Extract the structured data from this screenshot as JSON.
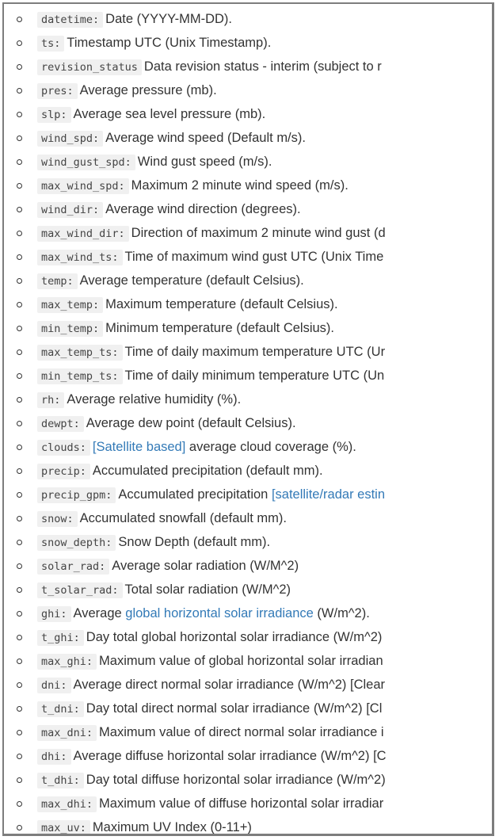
{
  "fields": [
    {
      "name": "datetime:",
      "parts": [
        {
          "text": "Date (YYYY-MM-DD).",
          "link": false
        }
      ]
    },
    {
      "name": "ts:",
      "parts": [
        {
          "text": "Timestamp UTC (Unix Timestamp).",
          "link": false
        }
      ]
    },
    {
      "name": "revision_status",
      "parts": [
        {
          "text": "Data revision status - interim (subject to r",
          "link": false
        }
      ]
    },
    {
      "name": "pres:",
      "parts": [
        {
          "text": "Average pressure (mb).",
          "link": false
        }
      ]
    },
    {
      "name": "slp:",
      "parts": [
        {
          "text": "Average sea level pressure (mb).",
          "link": false
        }
      ]
    },
    {
      "name": "wind_spd:",
      "parts": [
        {
          "text": "Average wind speed (Default m/s).",
          "link": false
        }
      ]
    },
    {
      "name": "wind_gust_spd:",
      "parts": [
        {
          "text": "Wind gust speed (m/s).",
          "link": false
        }
      ]
    },
    {
      "name": "max_wind_spd:",
      "parts": [
        {
          "text": "Maximum 2 minute wind speed (m/s).",
          "link": false
        }
      ]
    },
    {
      "name": "wind_dir:",
      "parts": [
        {
          "text": "Average wind direction (degrees).",
          "link": false
        }
      ]
    },
    {
      "name": "max_wind_dir:",
      "parts": [
        {
          "text": "Direction of maximum 2 minute wind gust (d",
          "link": false
        }
      ]
    },
    {
      "name": "max_wind_ts:",
      "parts": [
        {
          "text": "Time of maximum wind gust UTC (Unix Time",
          "link": false
        }
      ]
    },
    {
      "name": "temp:",
      "parts": [
        {
          "text": "Average temperature (default Celsius).",
          "link": false
        }
      ]
    },
    {
      "name": "max_temp:",
      "parts": [
        {
          "text": "Maximum temperature (default Celsius).",
          "link": false
        }
      ]
    },
    {
      "name": "min_temp:",
      "parts": [
        {
          "text": "Minimum temperature (default Celsius).",
          "link": false
        }
      ]
    },
    {
      "name": "max_temp_ts:",
      "parts": [
        {
          "text": "Time of daily maximum temperature UTC (Ur",
          "link": false
        }
      ]
    },
    {
      "name": "min_temp_ts:",
      "parts": [
        {
          "text": "Time of daily minimum temperature UTC (Un",
          "link": false
        }
      ]
    },
    {
      "name": "rh:",
      "parts": [
        {
          "text": "Average relative humidity (%).",
          "link": false
        }
      ]
    },
    {
      "name": "dewpt:",
      "parts": [
        {
          "text": "Average dew point (default Celsius).",
          "link": false
        }
      ]
    },
    {
      "name": "clouds:",
      "parts": [
        {
          "text": "[Satellite based]",
          "link": true
        },
        {
          "text": " average cloud coverage (%).",
          "link": false
        }
      ]
    },
    {
      "name": "precip:",
      "parts": [
        {
          "text": "Accumulated precipitation (default mm).",
          "link": false
        }
      ]
    },
    {
      "name": "precip_gpm:",
      "parts": [
        {
          "text": "Accumulated precipitation ",
          "link": false
        },
        {
          "text": "[satellite/radar estin",
          "link": true
        }
      ]
    },
    {
      "name": "snow:",
      "parts": [
        {
          "text": "Accumulated snowfall (default mm).",
          "link": false
        }
      ]
    },
    {
      "name": "snow_depth:",
      "parts": [
        {
          "text": "Snow Depth (default mm).",
          "link": false
        }
      ]
    },
    {
      "name": "solar_rad:",
      "parts": [
        {
          "text": "Average solar radiation (W/M^2)",
          "link": false
        }
      ]
    },
    {
      "name": "t_solar_rad:",
      "parts": [
        {
          "text": "Total solar radiation (W/M^2)",
          "link": false
        }
      ]
    },
    {
      "name": "ghi:",
      "parts": [
        {
          "text": "Average ",
          "link": false
        },
        {
          "text": "global horizontal solar irradiance",
          "link": true
        },
        {
          "text": " (W/m^2).",
          "link": false
        }
      ]
    },
    {
      "name": "t_ghi:",
      "parts": [
        {
          "text": "Day total global horizontal solar irradiance (W/m^2)",
          "link": false
        }
      ]
    },
    {
      "name": "max_ghi:",
      "parts": [
        {
          "text": "Maximum value of global horizontal solar irradian",
          "link": false
        }
      ]
    },
    {
      "name": "dni:",
      "parts": [
        {
          "text": "Average direct normal solar irradiance (W/m^2) [Clear",
          "link": false
        }
      ]
    },
    {
      "name": "t_dni:",
      "parts": [
        {
          "text": "Day total direct normal solar irradiance (W/m^2) [Cl",
          "link": false
        }
      ]
    },
    {
      "name": "max_dni:",
      "parts": [
        {
          "text": "Maximum value of direct normal solar irradiance i",
          "link": false
        }
      ]
    },
    {
      "name": "dhi:",
      "parts": [
        {
          "text": "Average diffuse horizontal solar irradiance (W/m^2) [C",
          "link": false
        }
      ]
    },
    {
      "name": "t_dhi:",
      "parts": [
        {
          "text": "Day total diffuse horizontal solar irradiance (W/m^2)",
          "link": false
        }
      ]
    },
    {
      "name": "max_dhi:",
      "parts": [
        {
          "text": "Maximum value of diffuse horizontal solar irradiar",
          "link": false
        }
      ]
    },
    {
      "name": "max_uv:",
      "parts": [
        {
          "text": "Maximum UV Index (0-11+)",
          "link": false
        }
      ]
    }
  ],
  "colors": {
    "text": "#333333",
    "link": "#337ab7",
    "code_bg": "#f0f0f0",
    "border": "#7d7d7d"
  }
}
